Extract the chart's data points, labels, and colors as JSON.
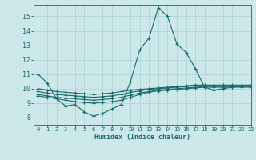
{
  "xlabel": "Humidex (Indice chaleur)",
  "xlim": [
    -0.5,
    23
  ],
  "ylim": [
    7.5,
    15.8
  ],
  "yticks": [
    8,
    9,
    10,
    11,
    12,
    13,
    14,
    15
  ],
  "xticks": [
    0,
    1,
    2,
    3,
    4,
    5,
    6,
    7,
    8,
    9,
    10,
    11,
    12,
    13,
    14,
    15,
    16,
    17,
    18,
    19,
    20,
    21,
    22,
    23
  ],
  "bg_color": "#cce8e8",
  "line_color": "#1a6b6b",
  "grid_color": "#b0d4d4",
  "lines": [
    [
      11.0,
      10.4,
      9.3,
      8.8,
      8.9,
      8.4,
      8.1,
      8.3,
      8.6,
      8.9,
      10.5,
      12.7,
      13.5,
      15.6,
      15.0,
      13.1,
      12.5,
      11.4,
      10.1,
      9.9,
      10.0,
      10.1,
      10.2,
      10.15
    ],
    [
      9.5,
      9.4,
      9.3,
      9.2,
      9.1,
      9.05,
      9.0,
      9.05,
      9.1,
      9.2,
      9.4,
      9.6,
      9.75,
      9.85,
      9.9,
      9.95,
      10.0,
      10.05,
      10.1,
      10.1,
      10.1,
      10.1,
      10.1,
      10.1
    ],
    [
      9.6,
      9.5,
      9.4,
      9.35,
      9.3,
      9.25,
      9.2,
      9.25,
      9.3,
      9.4,
      9.55,
      9.7,
      9.8,
      9.9,
      9.95,
      10.0,
      10.05,
      10.1,
      10.15,
      10.15,
      10.15,
      10.15,
      10.15,
      10.15
    ],
    [
      9.8,
      9.7,
      9.6,
      9.55,
      9.5,
      9.45,
      9.4,
      9.45,
      9.5,
      9.6,
      9.75,
      9.85,
      9.95,
      10.0,
      10.05,
      10.1,
      10.15,
      10.2,
      10.2,
      10.2,
      10.2,
      10.2,
      10.2,
      10.2
    ],
    [
      10.0,
      9.9,
      9.8,
      9.75,
      9.7,
      9.65,
      9.6,
      9.65,
      9.7,
      9.8,
      9.9,
      9.95,
      10.0,
      10.05,
      10.1,
      10.15,
      10.2,
      10.25,
      10.25,
      10.25,
      10.25,
      10.25,
      10.25,
      10.25
    ]
  ]
}
